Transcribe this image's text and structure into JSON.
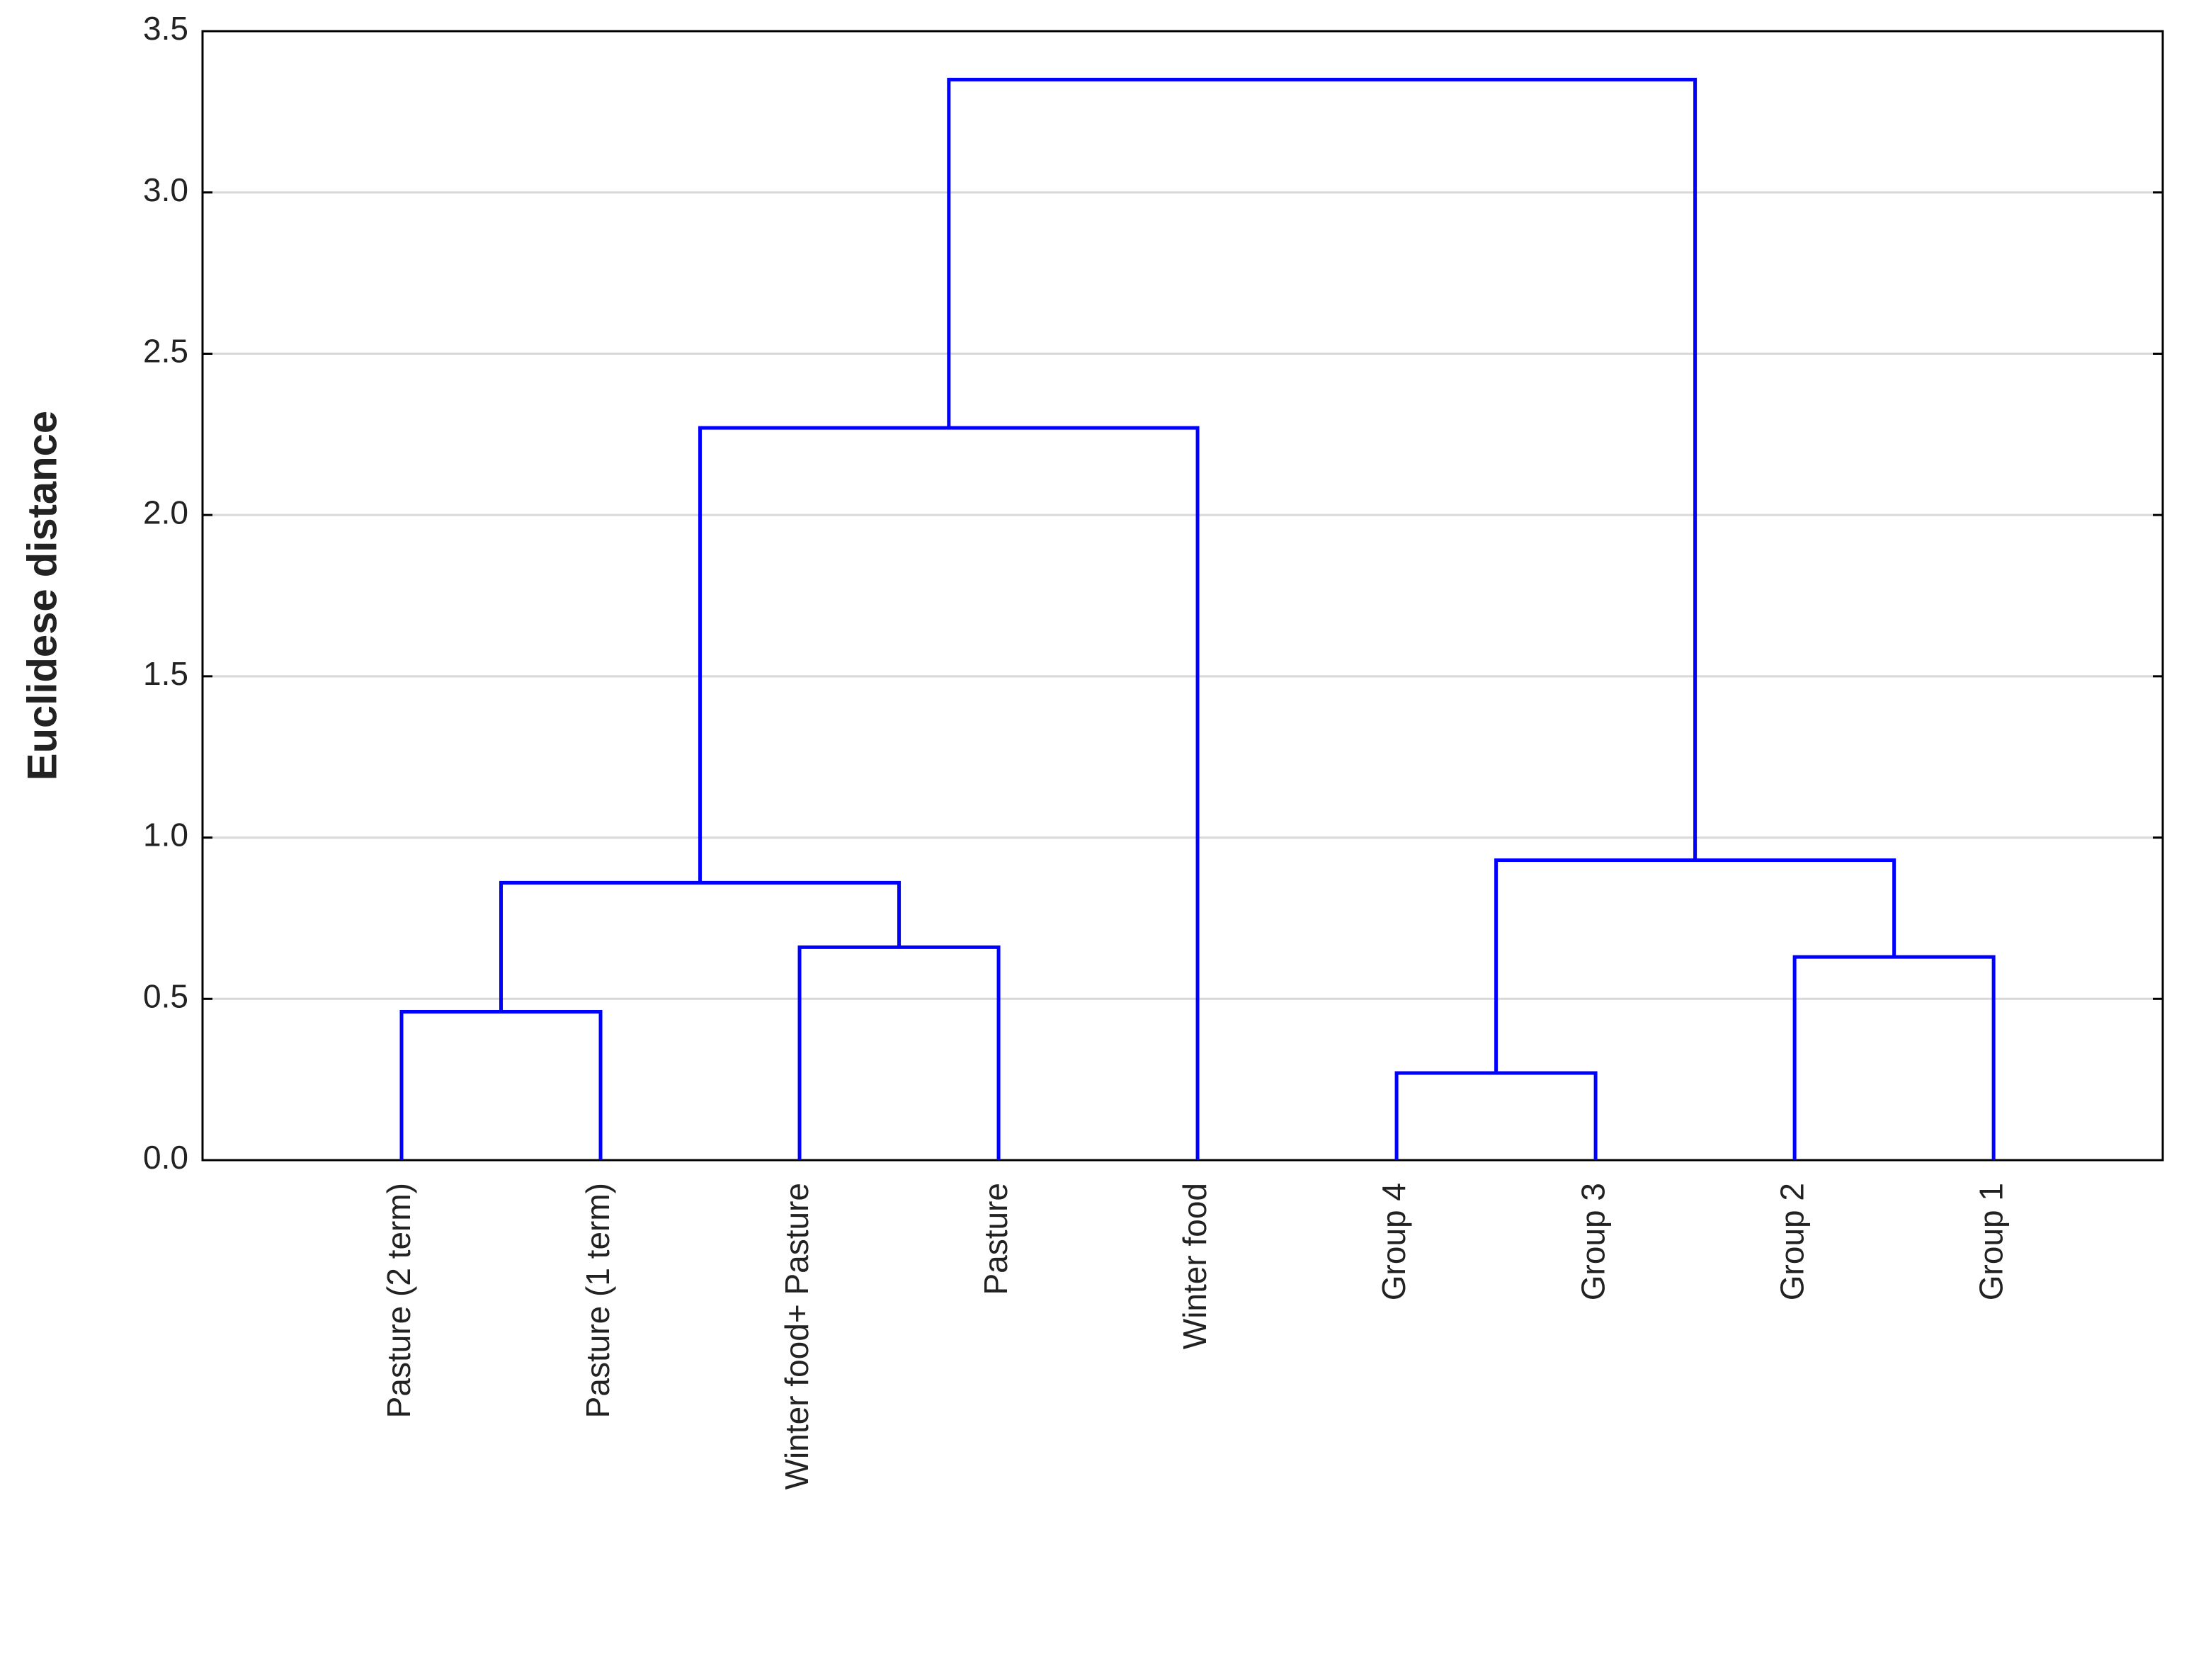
{
  "chart_data": {
    "type": "dendrogram",
    "y_label": "Euclidese distance",
    "categories": [
      "Pasture (2 term)",
      "Pasture (1 term)",
      "Winter food+ Pasture",
      "Pasture",
      "Winter food",
      "Group 4",
      "Group 3",
      "Group 2",
      "Group 1"
    ],
    "merges": [
      {
        "left": 0,
        "right": 1,
        "height": 0.46
      },
      {
        "left": 2,
        "right": 3,
        "height": 0.66
      },
      {
        "left": 9,
        "right": 10,
        "height": 0.86
      },
      {
        "left": 11,
        "right": 4,
        "height": 2.27
      },
      {
        "left": 5,
        "right": 6,
        "height": 0.27
      },
      {
        "left": 7,
        "right": 8,
        "height": 0.63
      },
      {
        "left": 13,
        "right": 14,
        "height": 0.93
      },
      {
        "left": 12,
        "right": 15,
        "height": 3.35
      }
    ],
    "color": "#0000ff",
    "ylim": [
      0,
      3.5
    ],
    "yticks": [
      {
        "value": 0,
        "label": "0.0"
      },
      {
        "value": 0.5,
        "label": "0.5"
      },
      {
        "value": 1,
        "label": "1.0"
      },
      {
        "value": 1.5,
        "label": "1.5"
      },
      {
        "value": 2,
        "label": "2.0"
      },
      {
        "value": 2.5,
        "label": "2.5"
      },
      {
        "value": 3,
        "label": "3.0"
      },
      {
        "value": 3.5,
        "label": "3.5"
      }
    ],
    "grid": true
  }
}
